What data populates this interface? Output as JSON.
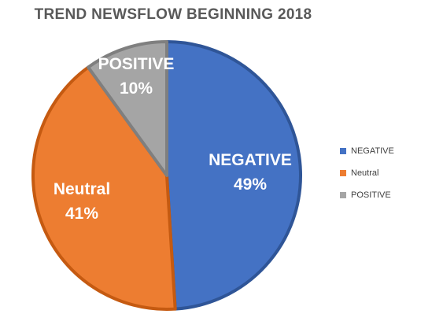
{
  "chart_data": {
    "type": "pie",
    "title": "TREND NEWSFLOW BEGINNING 2018",
    "legend_position": "right",
    "slices": [
      {
        "name": "NEGATIVE",
        "value": 49,
        "color": "#4472C4",
        "border": "#2F5597",
        "label_name": "NEGATIVE",
        "label_value": "49%"
      },
      {
        "name": "Neutral",
        "value": 41,
        "color": "#ED7D31",
        "border": "#C55A11",
        "label_name": "Neutral",
        "label_value": "41%"
      },
      {
        "name": "POSITIVE",
        "value": 10,
        "color": "#A5A5A5",
        "border": "#7F7F7F",
        "label_name": "POSITIVE",
        "label_value": "10%"
      }
    ]
  }
}
